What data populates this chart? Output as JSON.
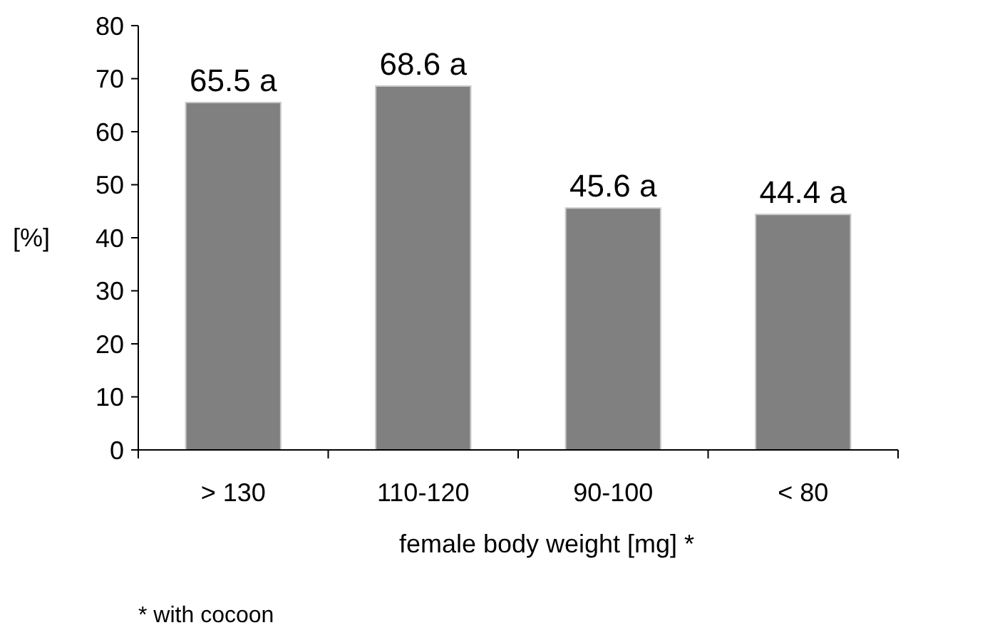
{
  "chart_data": {
    "type": "bar",
    "xlabel": "female body weight [mg] *",
    "ylabel": "[%]",
    "categories": [
      "> 130",
      "110-120",
      "90-100",
      "< 80"
    ],
    "values": [
      65.5,
      68.6,
      45.6,
      44.4
    ],
    "color": "#808080",
    "value_labels": [
      "65.5 a",
      "68.6 a",
      "45.6 a",
      "44.4 a"
    ],
    "ylim": [
      0,
      80
    ],
    "yticks": [
      0,
      10,
      20,
      30,
      40,
      50,
      60,
      70,
      80
    ],
    "grid": false,
    "annotations": [
      "* with cocoon"
    ]
  }
}
